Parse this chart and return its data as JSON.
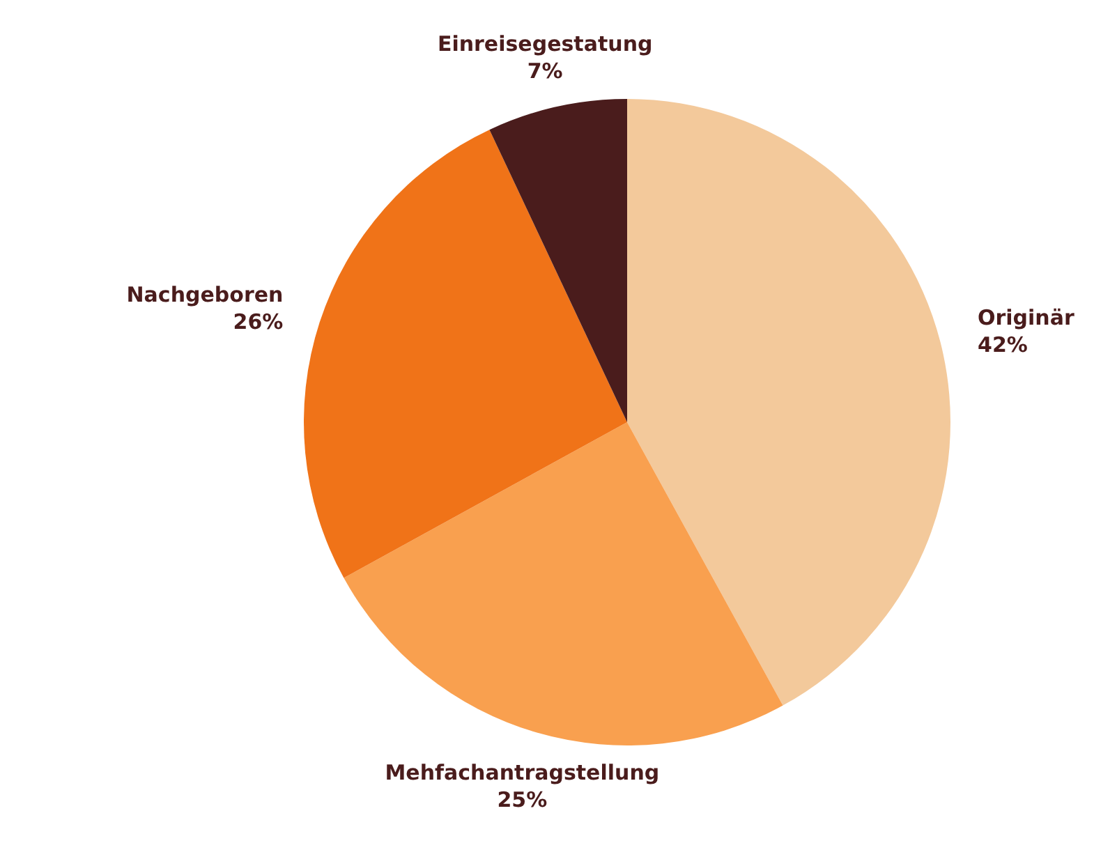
{
  "chart_data": {
    "type": "pie",
    "categories": [
      "Originär",
      "Mehfachantragstellung",
      "Nachgeboren",
      "Einreisegestatung"
    ],
    "values": [
      42,
      25,
      26,
      7
    ],
    "colors": [
      "#f3c99b",
      "#f9a04f",
      "#f07318",
      "#4a1c1c"
    ],
    "value_labels": [
      "42%",
      "25%",
      "26%",
      "7%"
    ]
  }
}
